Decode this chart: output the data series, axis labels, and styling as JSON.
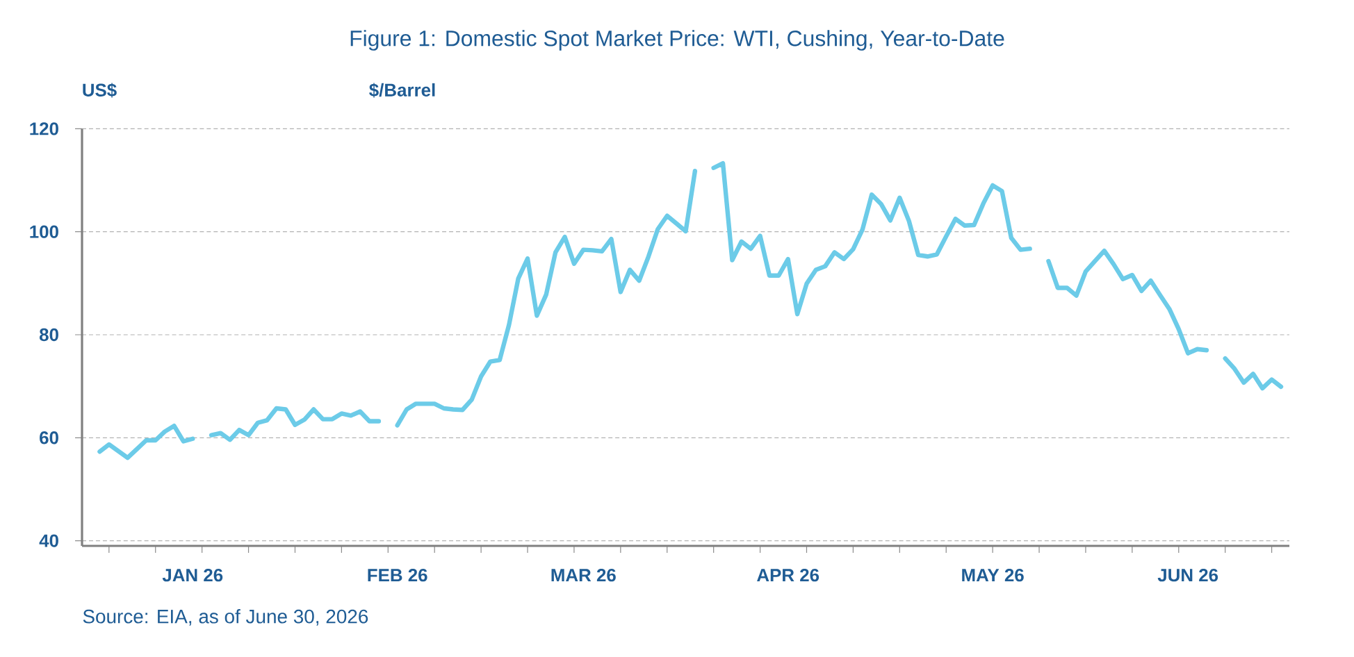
{
  "chart_data": {
    "type": "line",
    "title": "Figure 1: Domestic Spot Market Price: WTI, Cushing, Year-to-Date",
    "subtitle": "$/Barrel",
    "ylabel": "US$",
    "annotations": [
      "Source: EIA, as of June 30, 2026"
    ],
    "color": "#6ccbe8",
    "line_style": "solid",
    "marker": "none",
    "grid": "y",
    "ylim": [
      39,
      120
    ],
    "yticks": [
      40,
      60,
      80,
      100,
      120
    ],
    "categories": [
      null,
      null,
      null,
      null,
      null,
      null,
      null,
      null,
      null,
      null,
      "JAN 26",
      null,
      null,
      null,
      null,
      null,
      null,
      null,
      null,
      null,
      null,
      null,
      null,
      null,
      null,
      null,
      null,
      null,
      null,
      null,
      null,
      null,
      "FEB 26",
      null,
      null,
      null,
      null,
      null,
      null,
      null,
      null,
      null,
      null,
      null,
      null,
      null,
      null,
      null,
      null,
      null,
      null,
      null,
      "MAR 26",
      null,
      null,
      null,
      null,
      null,
      null,
      null,
      null,
      null,
      null,
      null,
      null,
      null,
      null,
      null,
      null,
      null,
      null,
      null,
      null,
      null,
      "APR 26",
      null,
      null,
      null,
      null,
      null,
      null,
      null,
      null,
      null,
      null,
      null,
      null,
      null,
      null,
      null,
      null,
      null,
      null,
      null,
      null,
      null,
      "MAY 26",
      null,
      null,
      null,
      null,
      null,
      null,
      null,
      null,
      null,
      null,
      null,
      null,
      null,
      null,
      null,
      null,
      null,
      null,
      null,
      null,
      "JUN 26",
      null,
      null,
      null,
      null,
      null,
      null,
      null,
      null,
      null,
      null
    ],
    "values": [
      57.3,
      58.7,
      57.4,
      56.1,
      57.8,
      59.5,
      59.5,
      61.2,
      62.3,
      59.3,
      59.8,
      null,
      60.5,
      60.9,
      59.6,
      61.5,
      60.5,
      62.9,
      63.4,
      65.7,
      65.5,
      62.5,
      63.5,
      65.5,
      63.6,
      63.6,
      64.7,
      64.3,
      65.1,
      63.2,
      63.2,
      null,
      62.4,
      65.5,
      66.6,
      66.6,
      66.6,
      65.7,
      65.5,
      65.4,
      67.4,
      71.9,
      74.8,
      75.1,
      81.9,
      90.9,
      94.8,
      83.7,
      87.8,
      96.0,
      99.0,
      93.8,
      96.5,
      96.4,
      96.2,
      98.6,
      88.3,
      92.6,
      90.5,
      95.2,
      100.5,
      103.1,
      101.6,
      100.1,
      111.8,
      null,
      112.4,
      113.3,
      94.5,
      98.1,
      96.7,
      99.2,
      91.5,
      91.5,
      94.7,
      84.0,
      89.9,
      92.6,
      93.3,
      96.0,
      94.7,
      96.6,
      100.4,
      107.2,
      105.4,
      102.2,
      106.6,
      102.1,
      95.5,
      95.2,
      95.6,
      99.1,
      102.5,
      101.2,
      101.3,
      105.5,
      109.0,
      107.9,
      98.8,
      96.5,
      96.7,
      null,
      94.3,
      89.1,
      89.1,
      87.6,
      92.3,
      94.3,
      96.3,
      93.7,
      90.8,
      91.6,
      88.5,
      90.5,
      87.7,
      85.0,
      81.1,
      76.4,
      77.2,
      77.0,
      null,
      75.4,
      73.4,
      70.7,
      72.4,
      69.6,
      71.3,
      69.9
    ]
  }
}
